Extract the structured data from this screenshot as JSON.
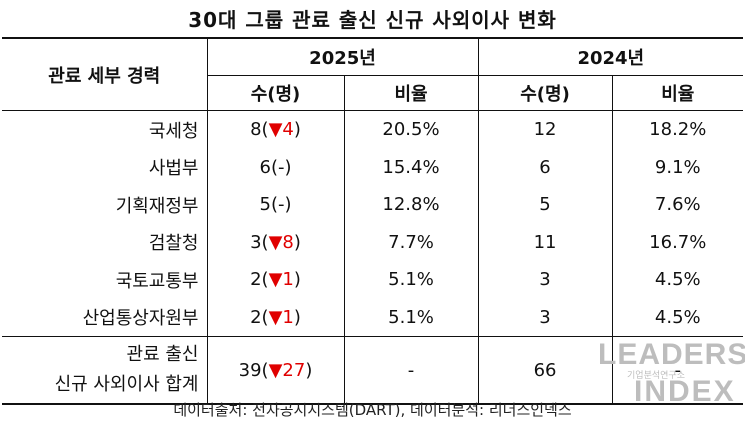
{
  "title": "30대 그룹 관료 출신 신규 사외이사 변화",
  "header": {
    "category_label": "관료 세부 경력",
    "year_2025": "2025년",
    "year_2024": "2024년",
    "count_label": "수(명)",
    "ratio_label": "비율"
  },
  "rows": [
    {
      "label": "국세청",
      "c2025_base": "8(",
      "c2025_change": "▼4",
      "c2025_close": ")",
      "r2025": "20.5%",
      "c2024": "12",
      "r2024": "18.2%"
    },
    {
      "label": "사법부",
      "c2025_base": "6(-)",
      "c2025_change": "",
      "c2025_close": "",
      "r2025": "15.4%",
      "c2024": "6",
      "r2024": "9.1%"
    },
    {
      "label": "기획재정부",
      "c2025_base": "5(-)",
      "c2025_change": "",
      "c2025_close": "",
      "r2025": "12.8%",
      "c2024": "5",
      "r2024": "7.6%"
    },
    {
      "label": "검찰청",
      "c2025_base": "3(",
      "c2025_change": "▼8",
      "c2025_close": ")",
      "r2025": "7.7%",
      "c2024": "11",
      "r2024": "16.7%"
    },
    {
      "label": "국토교통부",
      "c2025_base": "2(",
      "c2025_change": "▼1",
      "c2025_close": ")",
      "r2025": "5.1%",
      "c2024": "3",
      "r2024": "4.5%"
    },
    {
      "label": "산업통상자원부",
      "c2025_base": "2(",
      "c2025_change": "▼1",
      "c2025_close": ")",
      "r2025": "5.1%",
      "c2024": "3",
      "r2024": "4.5%"
    }
  ],
  "total": {
    "label_line1": "관료 출신",
    "label_line2": "신규 사외이사 합계",
    "c2025_base": "39(",
    "c2025_change": "▼27",
    "c2025_close": ")",
    "r2025": "-",
    "c2024": "66",
    "r2024": "-"
  },
  "source": "데이터출처: 전자공시시스템(DART), 데이터분석: 리더스인덱스",
  "watermark": {
    "line1": "LEADERS",
    "line2": "기업분석연구소",
    "line3": "INDEX"
  },
  "colors": {
    "decrease": "#e00000"
  }
}
